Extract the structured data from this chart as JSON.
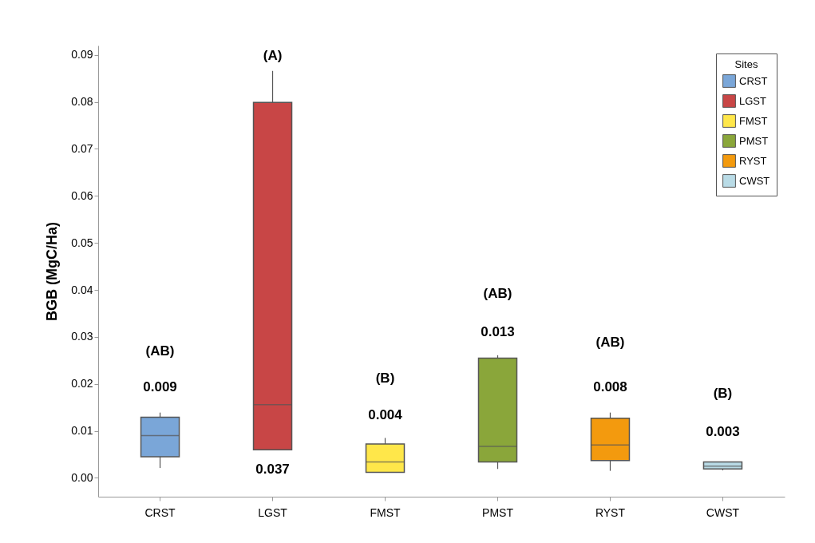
{
  "chart_data": {
    "type": "box",
    "ylabel": "BGB (MgC/Ha)",
    "legend_title": "Sites",
    "legend": "top right",
    "grid": false,
    "categories": [
      "CRST",
      "LGST",
      "FMST",
      "PMST",
      "RYST",
      "CWST"
    ],
    "series": [
      {
        "name": "CRST",
        "color": "#7aa6d8",
        "boxes": [
          {
            "low": 0.0021,
            "q1": 0.0045,
            "median": 0.009,
            "q3": 0.0129,
            "high": 0.0139
          },
          null,
          null,
          null,
          null,
          null
        ]
      },
      {
        "name": "LGST",
        "color": "#c84646",
        "boxes": [
          null,
          {
            "low": 0.006,
            "q1": 0.006,
            "median": 0.0156,
            "q3": 0.0799,
            "high": 0.0866
          },
          null,
          null,
          null,
          null
        ]
      },
      {
        "name": "FMST",
        "color": "#ffe74a",
        "boxes": [
          null,
          null,
          {
            "low": 0.0011,
            "q1": 0.0012,
            "median": 0.0034,
            "q3": 0.0072,
            "high": 0.0085
          },
          null,
          null,
          null
        ]
      },
      {
        "name": "PMST",
        "color": "#8aa63a",
        "boxes": [
          null,
          null,
          null,
          {
            "low": 0.0019,
            "q1": 0.0034,
            "median": 0.0067,
            "q3": 0.0255,
            "high": 0.0261
          },
          null,
          null
        ]
      },
      {
        "name": "RYST",
        "color": "#f39a0e",
        "boxes": [
          null,
          null,
          null,
          null,
          {
            "low": 0.0015,
            "q1": 0.0037,
            "median": 0.007,
            "q3": 0.0127,
            "high": 0.0139
          },
          null
        ]
      },
      {
        "name": "CWST",
        "color": "#b9dbe6",
        "boxes": [
          null,
          null,
          null,
          null,
          null,
          {
            "low": 0.0016,
            "q1": 0.0019,
            "median": 0.0025,
            "q3": 0.0034,
            "high": 0.0034
          }
        ]
      }
    ],
    "ylim": [
      -0.004,
      0.092
    ],
    "yticks": [
      {
        "value": 0,
        "label": "0.00"
      },
      0.01,
      0.02,
      0.03,
      0.04,
      0.05,
      0.06,
      0.07,
      0.08,
      0.09
    ],
    "annotations": [
      "(AB)",
      "0.009",
      "(A)",
      "0.037",
      "(B)",
      "0.004",
      "(AB)",
      "0.013",
      "(AB)",
      "0.008",
      "(B)",
      "0.003"
    ]
  }
}
